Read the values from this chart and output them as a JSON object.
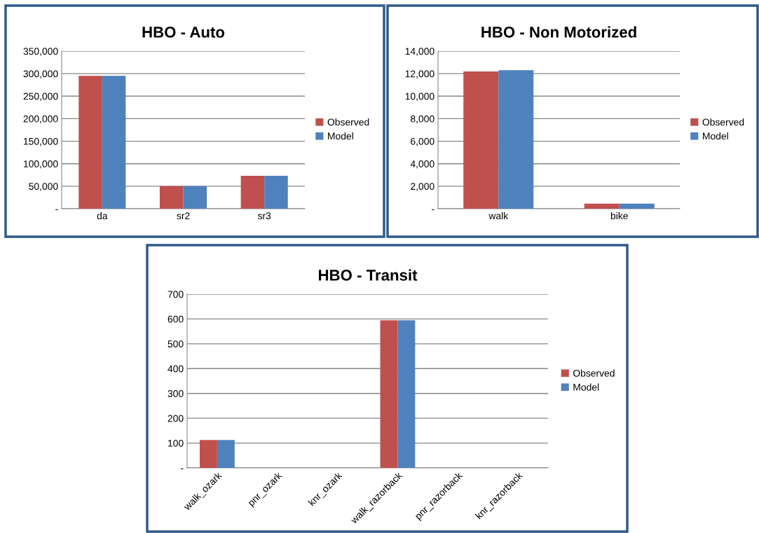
{
  "chart_data": [
    {
      "type": "bar",
      "title": "HBO - Auto",
      "categories": [
        "da",
        "sr2",
        "sr3"
      ],
      "series": [
        {
          "name": "Observed",
          "color": "#c0504d",
          "values": [
            295000,
            50000,
            73000
          ]
        },
        {
          "name": "Model",
          "color": "#4f81bd",
          "values": [
            295000,
            50000,
            73000
          ]
        }
      ],
      "ylim": [
        0,
        350000
      ],
      "yticks": [
        {
          "value": 0,
          "label": "-"
        },
        {
          "value": 50000,
          "label": "50,000"
        },
        {
          "value": 100000,
          "label": "100,000"
        },
        {
          "value": 150000,
          "label": "150,000"
        },
        {
          "value": 200000,
          "label": "200,000"
        },
        {
          "value": 250000,
          "label": "250,000"
        },
        {
          "value": 300000,
          "label": "300,000"
        },
        {
          "value": 350000,
          "label": "350,000"
        }
      ],
      "grid": "y",
      "legend": "right"
    },
    {
      "type": "bar",
      "title": "HBO - Non Motorized",
      "categories": [
        "walk",
        "bike"
      ],
      "series": [
        {
          "name": "Observed",
          "color": "#c0504d",
          "values": [
            12200,
            450
          ]
        },
        {
          "name": "Model",
          "color": "#4f81bd",
          "values": [
            12300,
            450
          ]
        }
      ],
      "ylim": [
        0,
        14000
      ],
      "yticks": [
        {
          "value": 0,
          "label": "-"
        },
        {
          "value": 2000,
          "label": "2,000"
        },
        {
          "value": 4000,
          "label": "4,000"
        },
        {
          "value": 6000,
          "label": "6,000"
        },
        {
          "value": 8000,
          "label": "8,000"
        },
        {
          "value": 10000,
          "label": "10,000"
        },
        {
          "value": 12000,
          "label": "12,000"
        },
        {
          "value": 14000,
          "label": "14,000"
        }
      ],
      "grid": "y",
      "legend": "right"
    },
    {
      "type": "bar",
      "title": "HBO - Transit",
      "categories": [
        "walk_ozark",
        "pnr_ozark",
        "knr_ozark",
        "walk_razorback",
        "pnr_razorback",
        "knr_razorback"
      ],
      "series": [
        {
          "name": "Observed",
          "color": "#c0504d",
          "values": [
            112,
            0,
            0,
            595,
            0,
            0
          ]
        },
        {
          "name": "Model",
          "color": "#4f81bd",
          "values": [
            112,
            0,
            0,
            595,
            0,
            0
          ]
        }
      ],
      "ylim": [
        0,
        700
      ],
      "yticks": [
        {
          "value": 0,
          "label": "-"
        },
        100,
        200,
        300,
        400,
        500,
        600,
        700
      ],
      "grid": "y",
      "legend": "right"
    }
  ]
}
